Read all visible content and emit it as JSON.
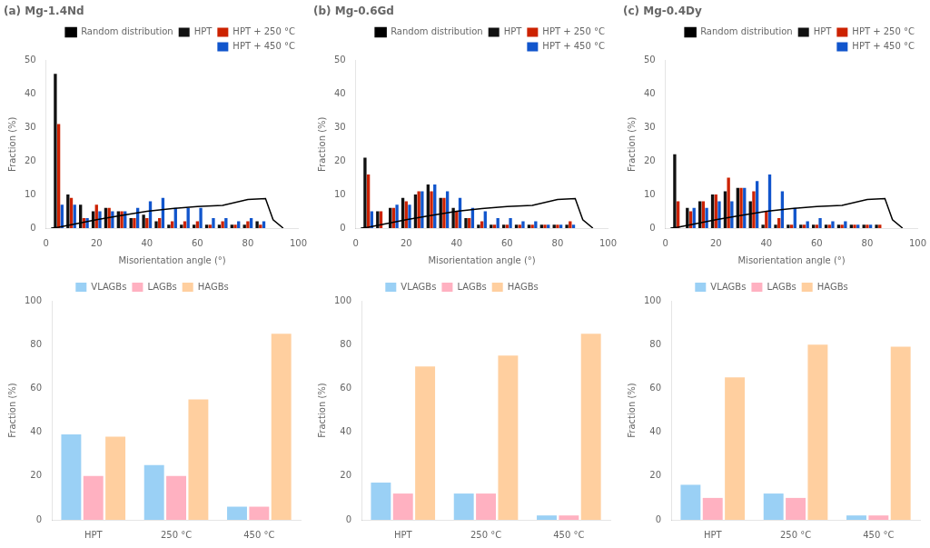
{
  "chart_data": [
    {
      "type": "bar",
      "title": "(a) Mg-1.4Nd",
      "xlabel": "Misorientation angle (°)",
      "ylabel": "Fraction (%)",
      "x": [
        5,
        10,
        15,
        20,
        25,
        30,
        35,
        40,
        45,
        50,
        55,
        60,
        65,
        70,
        75,
        80,
        85,
        90
      ],
      "series": [
        {
          "name": "HPT",
          "color": "#111111",
          "values": [
            46,
            10,
            7,
            5,
            6,
            5,
            3,
            4,
            2,
            1,
            1,
            1,
            1,
            1,
            1,
            1,
            2,
            0
          ]
        },
        {
          "name": "HPT + 250 °C",
          "color": "#cc2200",
          "values": [
            31,
            9,
            3,
            7,
            6,
            5,
            3,
            3,
            3,
            2,
            2,
            2,
            1,
            2,
            1,
            2,
            1,
            0
          ]
        },
        {
          "name": "HPT + 450 °C",
          "color": "#1155cc",
          "values": [
            7,
            7,
            3,
            5,
            5,
            5,
            6,
            8,
            9,
            6,
            6,
            6,
            3,
            3,
            2,
            3,
            2,
            0
          ]
        },
        {
          "name": "Random distribution",
          "type": "line",
          "color": "#000000",
          "x": [
            2,
            5,
            10,
            20,
            30,
            40,
            50,
            60,
            70,
            80,
            87,
            90,
            94
          ],
          "values": [
            0.0,
            0.3,
            1.0,
            2.5,
            3.8,
            5.0,
            5.8,
            6.4,
            6.8,
            8.5,
            8.8,
            2.5,
            0.0
          ]
        }
      ],
      "xlim": [
        0,
        100
      ],
      "xticks": [
        0,
        20,
        40,
        60,
        80,
        100
      ],
      "ylim": [
        0,
        50
      ],
      "yticks": [
        0,
        10,
        20,
        30,
        40,
        50
      ],
      "legend": "upper right",
      "grid": false
    },
    {
      "type": "bar",
      "title": "(b) Mg-0.6Gd",
      "xlabel": "Misorientation angle (°)",
      "ylabel": "Fraction (%)",
      "x": [
        5,
        10,
        15,
        20,
        25,
        30,
        35,
        40,
        45,
        50,
        55,
        60,
        65,
        70,
        75,
        80,
        85,
        90
      ],
      "series": [
        {
          "name": "HPT",
          "color": "#111111",
          "values": [
            21,
            5,
            6,
            9,
            10,
            13,
            9,
            6,
            3,
            1,
            1,
            1,
            1,
            1,
            1,
            1,
            1,
            0
          ]
        },
        {
          "name": "HPT + 250 °C",
          "color": "#cc2200",
          "values": [
            16,
            5,
            6,
            8,
            11,
            11,
            9,
            5,
            3,
            2,
            1,
            1,
            1,
            1,
            1,
            1,
            2,
            0
          ]
        },
        {
          "name": "HPT + 450 °C",
          "color": "#1155cc",
          "values": [
            5,
            0,
            7,
            7,
            11,
            13,
            11,
            9,
            6,
            5,
            3,
            3,
            2,
            2,
            1,
            1,
            1,
            0
          ]
        },
        {
          "name": "Random distribution",
          "type": "line",
          "color": "#000000",
          "x": [
            2,
            5,
            10,
            20,
            30,
            40,
            50,
            60,
            70,
            80,
            87,
            90,
            94
          ],
          "values": [
            0.0,
            0.3,
            1.0,
            2.5,
            3.8,
            5.0,
            5.8,
            6.4,
            6.8,
            8.5,
            8.8,
            2.5,
            0.0
          ]
        }
      ],
      "xlim": [
        0,
        100
      ],
      "xticks": [
        0,
        20,
        40,
        60,
        80,
        100
      ],
      "ylim": [
        0,
        50
      ],
      "yticks": [
        0,
        10,
        20,
        30,
        40,
        50
      ],
      "legend": "upper right",
      "grid": false
    },
    {
      "type": "bar",
      "title": "(c) Mg-0.4Dy",
      "xlabel": "Misorientation angle (°)",
      "ylabel": "Fraction (%)",
      "x": [
        5,
        10,
        15,
        20,
        25,
        30,
        35,
        40,
        45,
        50,
        55,
        60,
        65,
        70,
        75,
        80,
        85,
        90
      ],
      "series": [
        {
          "name": "HPT",
          "color": "#111111",
          "values": [
            22,
            6,
            8,
            10,
            11,
            12,
            8,
            1,
            1,
            1,
            1,
            1,
            1,
            1,
            1,
            1,
            1,
            0
          ]
        },
        {
          "name": "HPT + 250 °C",
          "color": "#cc2200",
          "values": [
            8,
            5,
            8,
            10,
            15,
            12,
            11,
            5,
            3,
            1,
            1,
            1,
            1,
            1,
            1,
            1,
            1,
            0
          ]
        },
        {
          "name": "HPT + 450 °C",
          "color": "#1155cc",
          "values": [
            0,
            6,
            6,
            8,
            8,
            12,
            14,
            16,
            11,
            6,
            2,
            3,
            2,
            2,
            1,
            1,
            0,
            0
          ]
        },
        {
          "name": "Random distribution",
          "type": "line",
          "color": "#000000",
          "x": [
            2,
            5,
            10,
            20,
            30,
            40,
            50,
            60,
            70,
            80,
            87,
            90,
            94
          ],
          "values": [
            0.0,
            0.3,
            1.0,
            2.5,
            3.8,
            5.0,
            5.8,
            6.4,
            6.8,
            8.5,
            8.8,
            2.5,
            0.0
          ]
        }
      ],
      "xlim": [
        0,
        100
      ],
      "xticks": [
        0,
        20,
        40,
        60,
        80,
        100
      ],
      "ylim": [
        0,
        50
      ],
      "yticks": [
        0,
        10,
        20,
        30,
        40,
        50
      ],
      "legend": "upper right",
      "grid": false
    },
    {
      "type": "bar",
      "ylabel": "Fraction (%)",
      "categories": [
        "HPT",
        "250 °C",
        "450 °C"
      ],
      "series": [
        {
          "name": "VLAGBs",
          "values": [
            39,
            25,
            6
          ]
        },
        {
          "name": "LAGBs",
          "values": [
            20,
            20,
            6
          ]
        },
        {
          "name": "HAGBs",
          "values": [
            38,
            55,
            85
          ]
        }
      ],
      "ylim": [
        0,
        100
      ],
      "yticks": [
        0,
        20,
        40,
        60,
        80,
        100
      ],
      "legend": "upper center",
      "grid": false
    },
    {
      "type": "bar",
      "ylabel": "Fraction (%)",
      "categories": [
        "HPT",
        "250 °C",
        "450 °C"
      ],
      "series": [
        {
          "name": "VLAGBs",
          "values": [
            17,
            12,
            2
          ]
        },
        {
          "name": "LAGBs",
          "values": [
            12,
            12,
            2
          ]
        },
        {
          "name": "HAGBs",
          "values": [
            70,
            75,
            85
          ]
        }
      ],
      "ylim": [
        0,
        100
      ],
      "yticks": [
        0,
        20,
        40,
        60,
        80,
        100
      ],
      "legend": "upper center",
      "grid": false
    },
    {
      "type": "bar",
      "ylabel": "Fraction (%)",
      "categories": [
        "HPT",
        "250 °C",
        "450 °C"
      ],
      "series": [
        {
          "name": "VLAGBs",
          "values": [
            16,
            12,
            2
          ]
        },
        {
          "name": "LAGBs",
          "values": [
            10,
            10,
            2
          ]
        },
        {
          "name": "HAGBs",
          "values": [
            65,
            80,
            79
          ]
        }
      ],
      "ylim": [
        0,
        100
      ],
      "yticks": [
        0,
        20,
        40,
        60,
        80,
        100
      ],
      "legend": "upper center",
      "grid": false
    }
  ]
}
